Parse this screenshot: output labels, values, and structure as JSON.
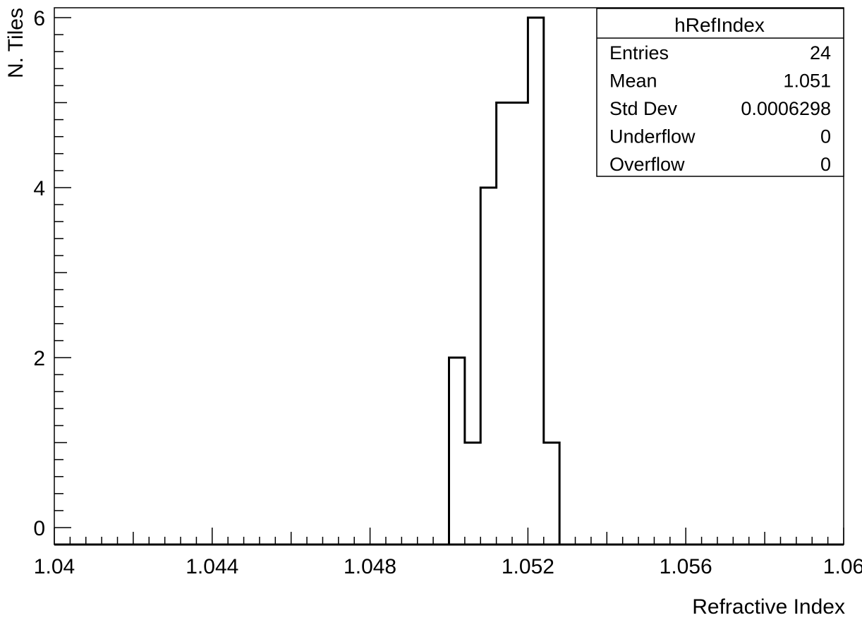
{
  "chart_data": {
    "type": "bar",
    "histogram": true,
    "xlabel": "Refractive Index",
    "ylabel": "N. Tiles",
    "xlim": [
      1.04,
      1.06
    ],
    "ylim": [
      0,
      6.3
    ],
    "x_ticks": [
      "1.04",
      "1.044",
      "1.048",
      "1.052",
      "1.056",
      "1.06"
    ],
    "y_ticks": [
      "0",
      "2",
      "4",
      "6"
    ],
    "bin_width": 0.0004,
    "bins": [
      {
        "x_low": 1.05,
        "count": 2
      },
      {
        "x_low": 1.0504,
        "count": 1
      },
      {
        "x_low": 1.0508,
        "count": 4
      },
      {
        "x_low": 1.0512,
        "count": 5
      },
      {
        "x_low": 1.0516,
        "count": 5
      },
      {
        "x_low": 1.052,
        "count": 6
      },
      {
        "x_low": 1.0524,
        "count": 1
      }
    ],
    "grid": false,
    "stats_box": {
      "title": "hRefIndex",
      "rows": [
        {
          "label": "Entries",
          "value": "24"
        },
        {
          "label": "Mean",
          "value": "1.051"
        },
        {
          "label": "Std Dev",
          "value": "0.0006298"
        },
        {
          "label": "Underflow",
          "value": "0"
        },
        {
          "label": "Overflow",
          "value": "0"
        }
      ],
      "placement": "top-right"
    }
  }
}
